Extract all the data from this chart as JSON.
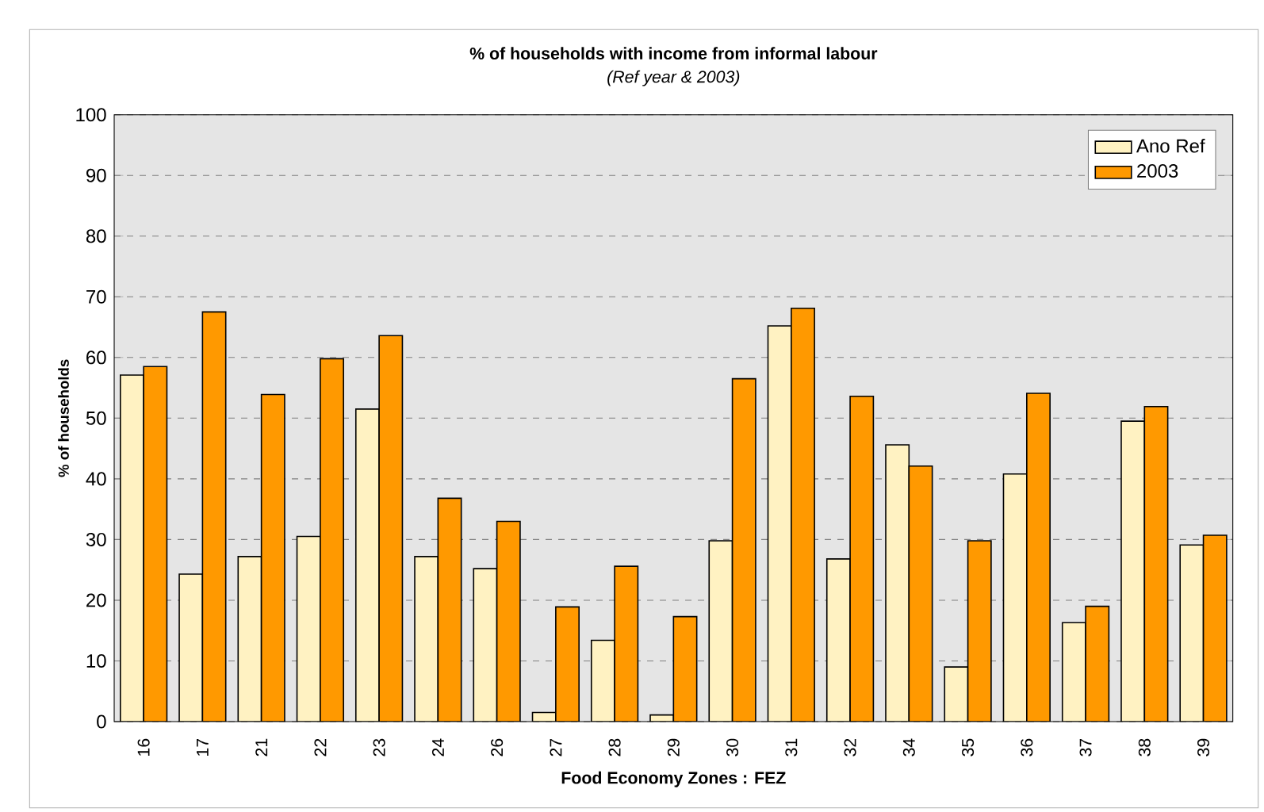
{
  "chart_data": {
    "type": "bar",
    "title": "% of households with income from informal labour",
    "subtitle": "(Ref year & 2003)",
    "xlabel": "Food Economy Zones : FEZ",
    "ylabel": "% of households",
    "categories": [
      "16",
      "17",
      "21",
      "22",
      "23",
      "24",
      "26",
      "27",
      "28",
      "29",
      "30",
      "31",
      "32",
      "34",
      "35",
      "36",
      "37",
      "38",
      "39"
    ],
    "series": [
      {
        "name": "Ano Ref",
        "color": "#fff2c2",
        "values": [
          57.1,
          24.3,
          27.2,
          30.5,
          51.5,
          27.2,
          25.2,
          1.5,
          13.4,
          1.1,
          29.8,
          65.2,
          26.8,
          45.6,
          9.0,
          40.8,
          16.3,
          49.5,
          29.1
        ]
      },
      {
        "name": "2003",
        "color": "#ff9900",
        "values": [
          58.5,
          67.5,
          53.9,
          59.8,
          63.6,
          36.8,
          33.0,
          18.9,
          25.6,
          17.3,
          56.5,
          68.1,
          53.6,
          42.1,
          29.8,
          54.1,
          19.0,
          51.9,
          30.7
        ]
      }
    ],
    "ylim": [
      0,
      100
    ],
    "yticks": [
      0,
      10,
      20,
      30,
      40,
      50,
      60,
      70,
      80,
      90,
      100
    ],
    "grid": "y",
    "legend": "top right"
  }
}
